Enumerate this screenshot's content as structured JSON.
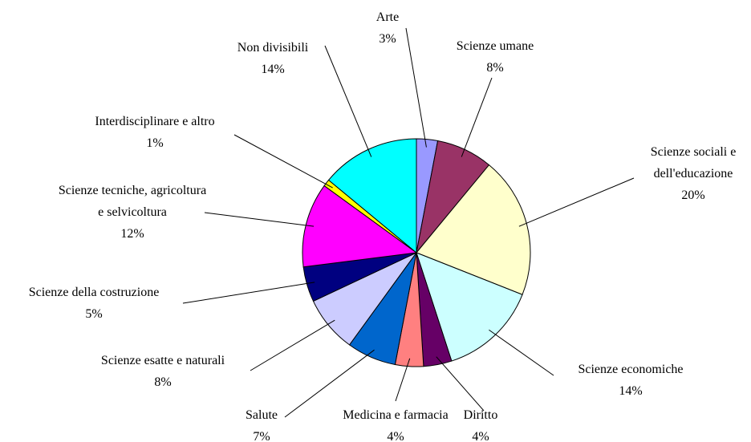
{
  "chart_data": {
    "type": "pie",
    "categories": [
      "Arte",
      "Scienze umane",
      "Scienze sociali e dell'educazione",
      "Scienze economiche",
      "Diritto",
      "Medicina e farmacia",
      "Salute",
      "Scienze esatte e naturali",
      "Scienze della costruzione",
      "Scienze tecniche, agricoltura e selvicoltura",
      "Interdisciplinare e altro",
      "Non divisibili"
    ],
    "values": [
      3,
      8,
      20,
      14,
      4,
      4,
      7,
      8,
      5,
      12,
      1,
      14
    ],
    "value_labels": [
      "3%",
      "8%",
      "20%",
      "14%",
      "4%",
      "4%",
      "7%",
      "8%",
      "5%",
      "12%",
      "1%",
      "14%"
    ],
    "colors": [
      "#9999ff",
      "#993366",
      "#ffffcc",
      "#ccffff",
      "#660066",
      "#ff8080",
      "#0066cc",
      "#ccccff",
      "#000080",
      "#ff00ff",
      "#ffff00",
      "#00ffff"
    ]
  }
}
